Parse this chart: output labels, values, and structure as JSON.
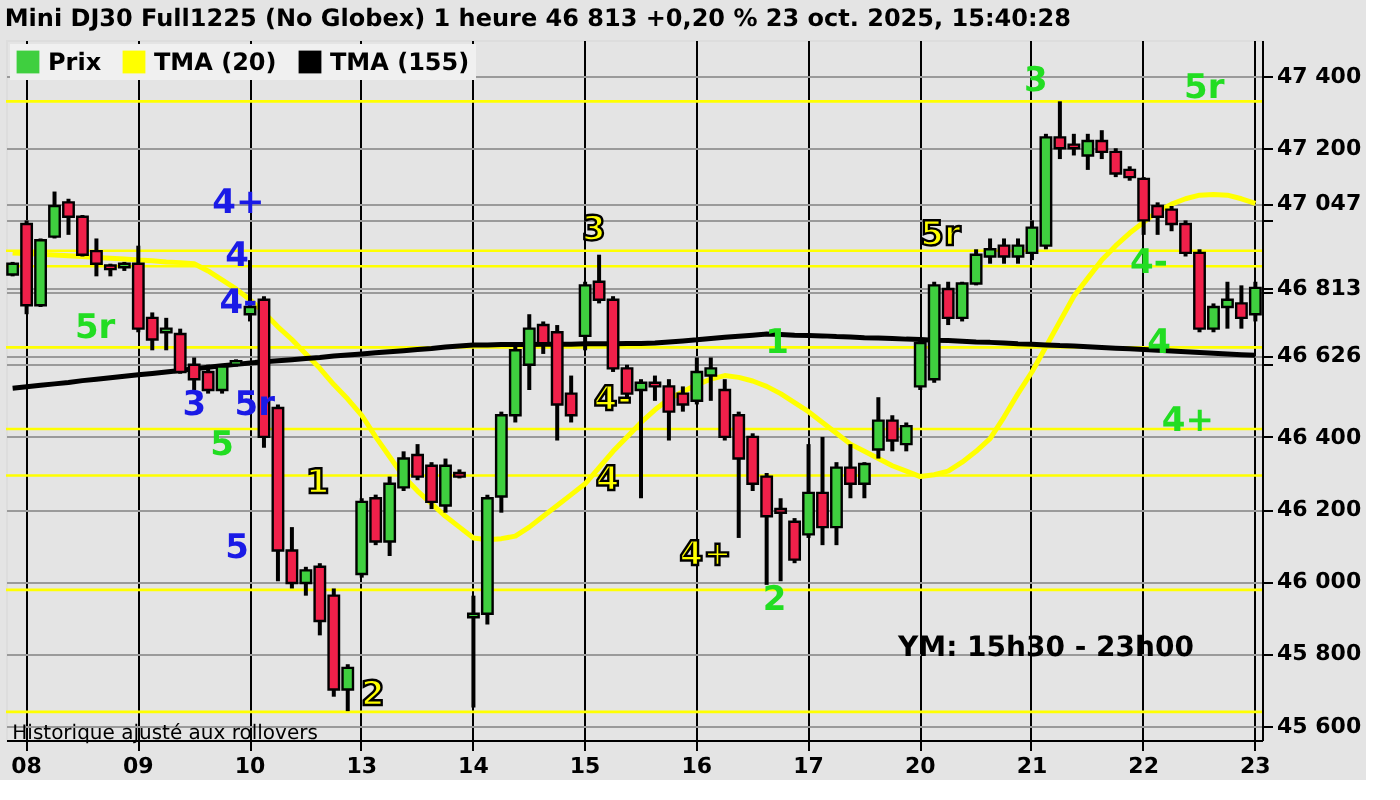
{
  "chart_data": {
    "type": "candlestick",
    "title": "Mini DJ30 Full1225 (No Globex) 1 heure 46 813 +0,20 % 23 oct. 2025, 15:40:28",
    "categories": [
      null,
      "08",
      null,
      null,
      null,
      null,
      null,
      null,
      null,
      "09",
      null,
      null,
      null,
      null,
      null,
      null,
      null,
      "10",
      null,
      null,
      null,
      null,
      null,
      null,
      null,
      "13",
      null,
      null,
      null,
      null,
      null,
      null,
      null,
      "14",
      null,
      null,
      null,
      null,
      null,
      null,
      null,
      "15",
      null,
      null,
      null,
      null,
      null,
      null,
      null,
      "16",
      null,
      null,
      null,
      null,
      null,
      null,
      null,
      "17",
      null,
      null,
      null,
      null,
      null,
      null,
      null,
      "20",
      null,
      null,
      null,
      null,
      null,
      null,
      null,
      "21",
      null,
      null,
      null,
      null,
      null,
      null,
      null,
      "22",
      null,
      null,
      null,
      null,
      null,
      null,
      null,
      "23"
    ],
    "ylim": [
      45560,
      47500
    ],
    "yticks": [
      {
        "value": 45600,
        "label": "45 600"
      },
      {
        "value": 45800,
        "label": "45 800"
      },
      {
        "value": 46000,
        "label": "46 000"
      },
      {
        "value": 46200,
        "label": "46 200"
      },
      {
        "value": 46400,
        "label": "46 400"
      },
      {
        "value": 46600,
        "label": null
      },
      {
        "value": 46626,
        "label": "46 626"
      },
      {
        "value": 46800,
        "label": null
      },
      {
        "value": 46813,
        "label": "46 813"
      },
      {
        "value": 47000,
        "label": null
      },
      {
        "value": 47047,
        "label": "47 047"
      },
      {
        "value": 47200,
        "label": "47 200"
      },
      {
        "value": 47400,
        "label": "47 400"
      }
    ],
    "grid": true,
    "legend": "top left",
    "line_style": "solid",
    "series": [
      {
        "name": "Prix",
        "colors": [
          "#3fcf3f",
          "#f0204a",
          "#3fcf3f",
          "#3fcf3f",
          "#f0204a",
          "#f0204a",
          "#f0204a",
          "#f0204a",
          "#3fcf3f",
          "#f0204a",
          "#f0204a",
          "#3fcf3f",
          "#f0204a",
          "#f0204a",
          "#f0204a",
          "#3fcf3f",
          "#3fcf3f",
          "#3fcf3f",
          "#f0204a",
          "#f0204a",
          "#f0204a",
          "#3fcf3f",
          "#f0204a",
          "#f0204a",
          "#3fcf3f",
          "#3fcf3f",
          "#f0204a",
          "#3fcf3f",
          "#3fcf3f",
          "#f0204a",
          "#f0204a",
          "#3fcf3f",
          "#f0204a",
          "#3fcf3f",
          "#3fcf3f",
          "#3fcf3f",
          "#3fcf3f",
          "#3fcf3f",
          "#f0204a",
          "#f0204a",
          "#f0204a",
          "#3fcf3f",
          "#f0204a",
          "#f0204a",
          "#f0204a",
          "#3fcf3f",
          "#f0204a",
          "#f0204a",
          "#f0204a",
          "#3fcf3f",
          "#3fcf3f",
          "#f0204a",
          "#f0204a",
          "#f0204a",
          "#f0204a",
          "#f0204a",
          "#f0204a",
          "#3fcf3f",
          "#f0204a",
          "#3fcf3f",
          "#f0204a",
          "#3fcf3f",
          "#3fcf3f",
          "#f0204a",
          "#3fcf3f",
          "#3fcf3f",
          "#3fcf3f",
          "#f0204a",
          "#3fcf3f",
          "#3fcf3f",
          "#3fcf3f",
          "#f0204a",
          "#3fcf3f",
          "#3fcf3f",
          "#3fcf3f",
          "#f0204a",
          "#f0204a",
          "#3fcf3f",
          "#f0204a",
          "#f0204a",
          "#f0204a",
          "#f0204a",
          "#f0204a",
          "#f0204a",
          "#f0204a",
          "#f0204a",
          "#3fcf3f",
          "#3fcf3f",
          "#f0204a",
          "#3fcf3f"
        ],
        "ohlc": [
          [
            46850,
            46885,
            46845,
            46880
          ],
          [
            46990,
            47000,
            46740,
            46765
          ],
          [
            46765,
            46950,
            46760,
            46945
          ],
          [
            46955,
            47080,
            46950,
            47040
          ],
          [
            47050,
            47060,
            46960,
            47010
          ],
          [
            47010,
            47015,
            46900,
            46905
          ],
          [
            46915,
            46950,
            46845,
            46880
          ],
          [
            46875,
            46880,
            46845,
            46865
          ],
          [
            46870,
            46885,
            46860,
            46880
          ],
          [
            46880,
            46930,
            46690,
            46700
          ],
          [
            46730,
            46745,
            46640,
            46670
          ],
          [
            46690,
            46730,
            46640,
            46700
          ],
          [
            46685,
            46700,
            46575,
            46580
          ],
          [
            46600,
            46620,
            46530,
            46560
          ],
          [
            46580,
            46600,
            46520,
            46530
          ],
          [
            46530,
            46600,
            46520,
            46595
          ],
          [
            46600,
            46615,
            46595,
            46610
          ],
          [
            46740,
            46890,
            46720,
            46760
          ],
          [
            46780,
            46790,
            46370,
            46400
          ],
          [
            46480,
            46490,
            46000,
            46085
          ],
          [
            46085,
            46150,
            45980,
            45995
          ],
          [
            45995,
            46040,
            45960,
            46030
          ],
          [
            46040,
            46050,
            45850,
            45890
          ],
          [
            45960,
            45980,
            45680,
            45700
          ],
          [
            45700,
            45770,
            45640,
            45760
          ],
          [
            46020,
            46230,
            46010,
            46220
          ],
          [
            46230,
            46240,
            46100,
            46110
          ],
          [
            46110,
            46290,
            46070,
            46270
          ],
          [
            46260,
            46360,
            46250,
            46340
          ],
          [
            46350,
            46380,
            46280,
            46290
          ],
          [
            46320,
            46330,
            46200,
            46220
          ],
          [
            46210,
            46340,
            46190,
            46320
          ],
          [
            46300,
            46310,
            46285,
            46290
          ],
          [
            45900,
            45960,
            45650,
            45910
          ],
          [
            45910,
            46240,
            45880,
            46230
          ],
          [
            46235,
            46470,
            46190,
            46460
          ],
          [
            46460,
            46650,
            46440,
            46640
          ],
          [
            46600,
            46740,
            46530,
            46700
          ],
          [
            46710,
            46720,
            46630,
            46660
          ],
          [
            46690,
            46710,
            46390,
            46490
          ],
          [
            46520,
            46570,
            46440,
            46460
          ],
          [
            46680,
            46830,
            46640,
            46820
          ],
          [
            46830,
            46905,
            46770,
            46780
          ],
          [
            46780,
            46790,
            46580,
            46590
          ],
          [
            46590,
            46600,
            46510,
            46520
          ],
          [
            46530,
            46560,
            46230,
            46550
          ],
          [
            46550,
            46570,
            46500,
            46540
          ],
          [
            46540,
            46560,
            46390,
            46470
          ],
          [
            46520,
            46540,
            46470,
            46490
          ],
          [
            46500,
            46620,
            46490,
            46580
          ],
          [
            46570,
            46620,
            46500,
            46590
          ],
          [
            46530,
            46560,
            46390,
            46400
          ],
          [
            46460,
            46470,
            46120,
            46340
          ],
          [
            46400,
            46410,
            46250,
            46270
          ],
          [
            46290,
            46300,
            45990,
            46180
          ],
          [
            46200,
            46230,
            46000,
            46190
          ],
          [
            46165,
            46175,
            46050,
            46060
          ],
          [
            46130,
            46380,
            46120,
            46245
          ],
          [
            46245,
            46400,
            46100,
            46150
          ],
          [
            46150,
            46330,
            46100,
            46315
          ],
          [
            46315,
            46380,
            46230,
            46270
          ],
          [
            46270,
            46330,
            46230,
            46325
          ],
          [
            46365,
            46510,
            46340,
            46445
          ],
          [
            46445,
            46460,
            46360,
            46390
          ],
          [
            46380,
            46440,
            46360,
            46430
          ],
          [
            46540,
            46670,
            46530,
            46660
          ],
          [
            46560,
            46830,
            46550,
            46820
          ],
          [
            46810,
            46830,
            46710,
            46730
          ],
          [
            46730,
            46830,
            46720,
            46825
          ],
          [
            46825,
            46920,
            46820,
            46905
          ],
          [
            46900,
            46950,
            46880,
            46920
          ],
          [
            46930,
            46950,
            46880,
            46900
          ],
          [
            46900,
            46950,
            46880,
            46930
          ],
          [
            46910,
            47000,
            46890,
            46980
          ],
          [
            46930,
            47240,
            46920,
            47230
          ],
          [
            47230,
            47330,
            47170,
            47200
          ],
          [
            47210,
            47240,
            47180,
            47200
          ],
          [
            47180,
            47240,
            47140,
            47220
          ],
          [
            47220,
            47250,
            47170,
            47190
          ],
          [
            47190,
            47200,
            47120,
            47130
          ],
          [
            47140,
            47150,
            47110,
            47120
          ],
          [
            47115,
            47120,
            46960,
            47000
          ],
          [
            47040,
            47050,
            46960,
            47010
          ],
          [
            47030,
            47040,
            46970,
            46990
          ],
          [
            46990,
            47000,
            46900,
            46910
          ],
          [
            46910,
            46920,
            46690,
            46700
          ],
          [
            46700,
            46770,
            46690,
            46760
          ],
          [
            46760,
            46830,
            46700,
            46780
          ],
          [
            46770,
            46820,
            46700,
            46730
          ],
          [
            46740,
            46830,
            46720,
            46813
          ]
        ]
      },
      {
        "name": "TMA (20)",
        "type": "line",
        "color": "#ffff00",
        "values": [
          46910,
          46908,
          46906,
          46904,
          46902,
          46900,
          46897,
          46895,
          46893,
          46890,
          46888,
          46885,
          46883,
          46880,
          46860,
          46835,
          46810,
          46780,
          46745,
          46705,
          46670,
          46630,
          46590,
          46545,
          46505,
          46460,
          46400,
          46345,
          46290,
          46250,
          46215,
          46180,
          46150,
          46120,
          46115,
          46118,
          46125,
          46150,
          46180,
          46210,
          46240,
          46270,
          46315,
          46360,
          46400,
          46440,
          46475,
          46505,
          46525,
          46545,
          46560,
          46570,
          46565,
          46555,
          46540,
          46520,
          46495,
          46470,
          46440,
          46410,
          46380,
          46360,
          46340,
          46320,
          46305,
          46290,
          46295,
          46305,
          46330,
          46360,
          46395,
          46455,
          46520,
          46580,
          46650,
          46720,
          46790,
          46840,
          46890,
          46930,
          46965,
          46995,
          47025,
          47045,
          47060,
          47070,
          47072,
          47070,
          47060,
          47047
        ]
      },
      {
        "name": "TMA (155)",
        "type": "line",
        "color": "#000000",
        "values": [
          46535,
          46539,
          46543,
          46547,
          46551,
          46556,
          46560,
          46564,
          46568,
          46572,
          46576,
          46580,
          46584,
          46589,
          46593,
          46597,
          46601,
          46605,
          46608,
          46611,
          46614,
          46617,
          46620,
          46624,
          46627,
          46630,
          46633,
          46636,
          46639,
          46642,
          46645,
          46649,
          46652,
          46655,
          46655,
          46656,
          46656,
          46656,
          46657,
          46657,
          46657,
          46658,
          46658,
          46658,
          46659,
          46659,
          46660,
          46663,
          46666,
          46669,
          46673,
          46676,
          46679,
          46682,
          46685,
          46684,
          46682,
          46681,
          46680,
          46678,
          46677,
          46675,
          46674,
          46673,
          46671,
          46670,
          46668,
          46667,
          46665,
          46663,
          46662,
          46660,
          46658,
          46657,
          46655,
          46653,
          46652,
          46650,
          46648,
          46646,
          46644,
          46642,
          46640,
          46638,
          46636,
          46634,
          46632,
          46630,
          46628,
          46626
        ]
      }
    ],
    "ref_lines": [
      {
        "axis": "y",
        "value": 47330,
        "color": "#ffff00"
      },
      {
        "axis": "y",
        "value": 46916,
        "color": "#ffff00"
      },
      {
        "axis": "y",
        "value": 46873,
        "color": "#ffff00"
      },
      {
        "axis": "y",
        "value": 46648,
        "color": "#ffff00"
      },
      {
        "axis": "y",
        "value": 46422,
        "color": "#ffff00"
      },
      {
        "axis": "y",
        "value": 46293,
        "color": "#ffff00"
      },
      {
        "axis": "y",
        "value": 45976,
        "color": "#ffff00"
      },
      {
        "axis": "y",
        "value": 45638,
        "color": "#ffff00"
      }
    ],
    "annotations": [
      "Historique ajusté aux rollovers",
      "YM: 15h30 - 23h00",
      "5r",
      "4+",
      "4",
      "4-",
      "3",
      "5r",
      "5",
      "1",
      "5",
      "2",
      "3",
      "4-",
      "4",
      "4+",
      "1",
      "2",
      "5r",
      "3",
      "5r",
      "4-",
      "4",
      "4+"
    ]
  }
}
